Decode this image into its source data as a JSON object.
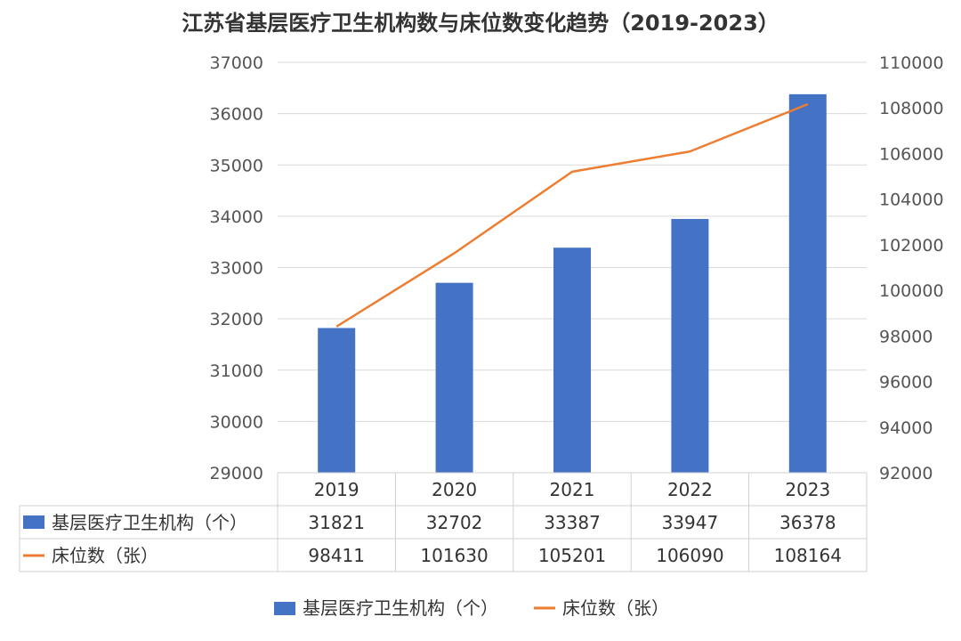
{
  "chart_data": {
    "type": "bar+line",
    "title": "江苏省基层医疗卫生机构数与床位数变化趋势（2019-2023）",
    "categories": [
      "2019",
      "2020",
      "2021",
      "2022",
      "2023"
    ],
    "series": [
      {
        "name": "基层医疗卫生机构（个）",
        "kind": "bar",
        "axis": "left",
        "color": "#4472C4",
        "values": [
          31821,
          32702,
          33387,
          33947,
          36378
        ]
      },
      {
        "name": "床位数（张）",
        "kind": "line",
        "axis": "right",
        "color": "#ED7D31",
        "values": [
          98411,
          101630,
          105201,
          106090,
          108164
        ]
      }
    ],
    "y_left": {
      "min": 29000,
      "max": 37000,
      "step": 1000
    },
    "y_right": {
      "min": 92000,
      "max": 110000,
      "step": 2000
    },
    "grid": true,
    "data_table": true,
    "legend": "bottom"
  }
}
